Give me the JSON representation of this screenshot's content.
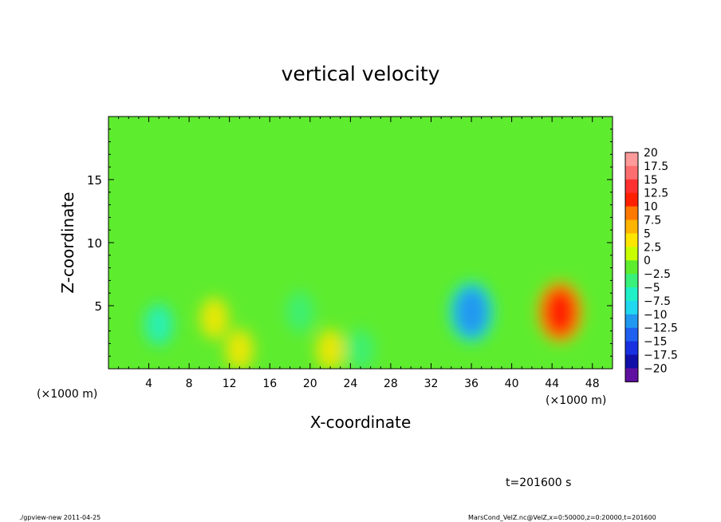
{
  "chart_data": {
    "type": "heatmap",
    "title": "vertical velocity",
    "xlabel": "X-coordinate",
    "ylabel": "Z-coordinate",
    "x_unit_label": "(×1000 m)",
    "x_unit_label_left": "(×1000 m)",
    "xlim": [
      0,
      50
    ],
    "ylim": [
      0,
      20
    ],
    "x_ticks": [
      4,
      8,
      12,
      16,
      20,
      24,
      28,
      32,
      36,
      40,
      44,
      48
    ],
    "y_ticks": [
      5,
      10,
      15
    ],
    "colorbar": {
      "levels": [
        "20",
        "17.5",
        "15",
        "12.5",
        "10",
        "7.5",
        "5",
        "2.5",
        "0",
        "−2.5",
        "−5",
        "−7.5",
        "−10",
        "−12.5",
        "−15",
        "−17.5",
        "−20"
      ],
      "colors": [
        "#ff9a9a",
        "#ff6e6e",
        "#ff3030",
        "#ff2000",
        "#ff7800",
        "#ffb400",
        "#ffe600",
        "#c8ff00",
        "#5eec2e",
        "#38f07a",
        "#20f0c8",
        "#20d8f0",
        "#2098f0",
        "#2060f0",
        "#1830e0",
        "#1010a8",
        "#6010a0"
      ]
    },
    "features": [
      {
        "x": 44.8,
        "z": 4.5,
        "value": 11
      },
      {
        "x": 36.0,
        "z": 4.5,
        "value": -11
      },
      {
        "x": 5.0,
        "z": 3.5,
        "value": -5
      },
      {
        "x": 10.5,
        "z": 4.0,
        "value": 3
      },
      {
        "x": 22.0,
        "z": 1.5,
        "value": 3
      },
      {
        "x": 25.0,
        "z": 1.5,
        "value": -4
      },
      {
        "x": 13.0,
        "z": 1.5,
        "value": 3
      },
      {
        "x": 19.0,
        "z": 4.5,
        "value": -3
      }
    ]
  },
  "annotations": {
    "time": "t=201600 s",
    "footer_left": "./gpview-new   2011-04-25",
    "footer_right": "MarsCond_VelZ.nc@VelZ,x=0:50000,z=0:20000,t=201600"
  }
}
